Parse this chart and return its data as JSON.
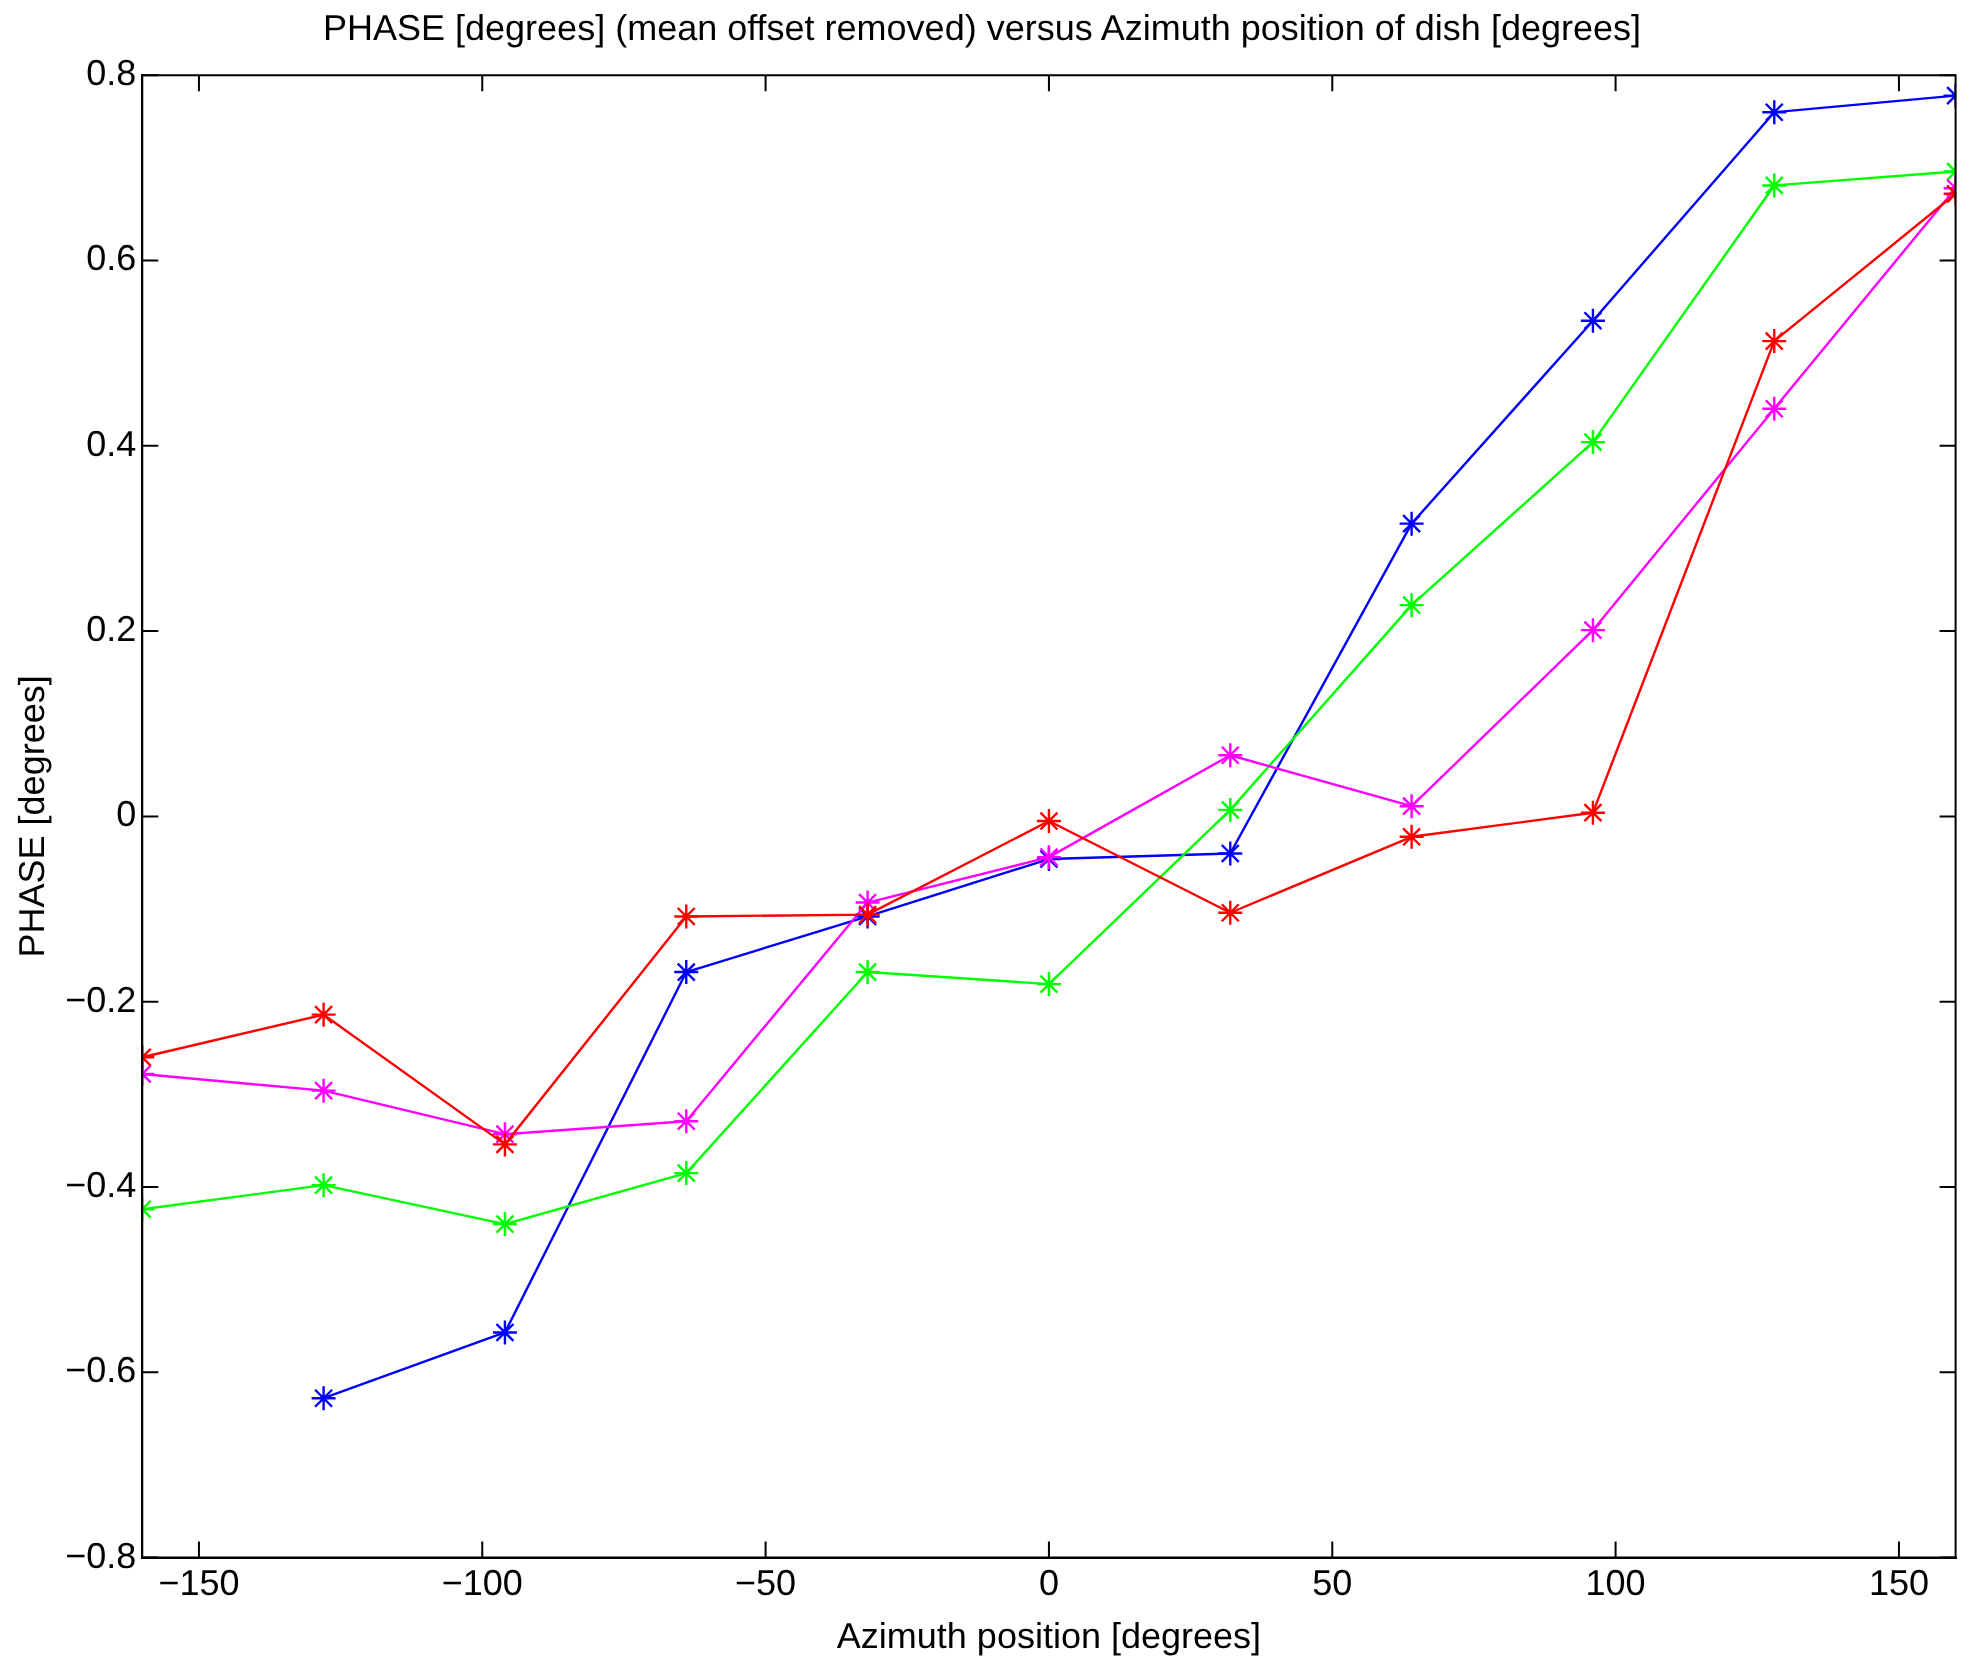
{
  "chart_data": {
    "type": "line",
    "title": "PHASE [degrees] (mean offset removed) versus Azimuth position of dish [degrees]",
    "xlabel": "Azimuth position [degrees]",
    "ylabel": "PHASE [degrees]",
    "x": [
      -160,
      -128,
      -96,
      -64,
      -32,
      0,
      32,
      64,
      96,
      128,
      160
    ],
    "series": [
      {
        "color": "#ff0000",
        "values": [
          -0.26,
          -0.214,
          -0.354,
          -0.108,
          -0.106,
          -0.005,
          -0.104,
          -0.022,
          0.004,
          0.513,
          0.672
        ]
      },
      {
        "color": "#ff00ff",
        "values": [
          -0.278,
          -0.296,
          -0.343,
          -0.329,
          -0.093,
          -0.044,
          0.066,
          0.011,
          0.201,
          0.44,
          0.678
        ]
      },
      {
        "color": "#00ff00",
        "values": [
          -0.424,
          -0.398,
          -0.44,
          -0.385,
          -0.168,
          -0.181,
          0.007,
          0.228,
          0.404,
          0.681,
          0.696
        ]
      },
      {
        "color": "#0000ff",
        "values": [
          null,
          -0.628,
          -0.557,
          -0.168,
          -0.108,
          -0.046,
          -0.04,
          0.316,
          0.535,
          0.76,
          0.778
        ]
      }
    ],
    "xlim": [
      -160,
      160
    ],
    "xticks": [
      -150,
      -100,
      -50,
      0,
      50,
      100,
      150
    ],
    "ylim": [
      -0.8,
      0.8
    ],
    "yticks": [
      -0.8,
      -0.6,
      -0.4,
      -0.2,
      0,
      0.2,
      0.4,
      0.6,
      0.8
    ],
    "grid": false,
    "legend": false,
    "marker": "cross",
    "line_style": "solid"
  }
}
